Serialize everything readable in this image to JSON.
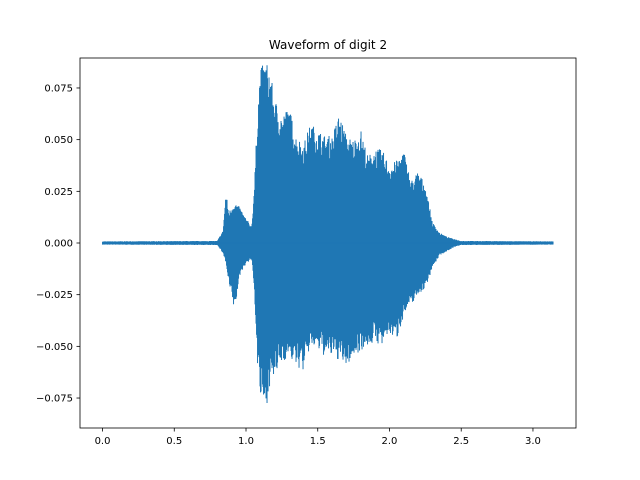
{
  "chart_data": {
    "type": "line",
    "title": "Waveform of digit 2",
    "xlabel": "",
    "ylabel": "",
    "xlim": [
      -0.157,
      3.3
    ],
    "ylim": [
      -0.0895,
      0.0895
    ],
    "x_ticks": [
      0.0,
      0.5,
      1.0,
      1.5,
      2.0,
      2.5,
      3.0
    ],
    "x_tick_labels": [
      "0.0",
      "0.5",
      "1.0",
      "1.5",
      "2.0",
      "2.5",
      "3.0"
    ],
    "y_ticks": [
      -0.075,
      -0.05,
      -0.025,
      0.0,
      0.025,
      0.05,
      0.075
    ],
    "y_tick_labels": [
      "−0.075",
      "−0.050",
      "−0.025",
      "0.000",
      "0.025",
      "0.050",
      "0.075"
    ],
    "grid": false,
    "series": [
      {
        "color": "#1f77b4",
        "sample_rate_hz": 8000,
        "duration_s": 3.14,
        "envelope": {
          "t": [
            0.0,
            0.8,
            0.84,
            0.86,
            0.88,
            0.92,
            0.96,
            1.0,
            1.04,
            1.06,
            1.08,
            1.1,
            1.14,
            1.16,
            1.2,
            1.25,
            1.3,
            1.35,
            1.4,
            1.45,
            1.5,
            1.55,
            1.6,
            1.65,
            1.7,
            1.75,
            1.8,
            1.85,
            1.9,
            1.95,
            2.0,
            2.05,
            2.1,
            2.15,
            2.2,
            2.25,
            2.3,
            2.35,
            2.4,
            2.45,
            2.5,
            3.14
          ],
          "max": [
            0.0008,
            0.001,
            0.006,
            0.025,
            0.015,
            0.02,
            0.017,
            0.012,
            0.008,
            0.03,
            0.065,
            0.085,
            0.088,
            0.086,
            0.07,
            0.062,
            0.066,
            0.052,
            0.048,
            0.058,
            0.055,
            0.052,
            0.052,
            0.063,
            0.052,
            0.05,
            0.055,
            0.042,
            0.046,
            0.045,
            0.038,
            0.04,
            0.045,
            0.03,
            0.035,
            0.028,
            0.01,
            0.005,
            0.003,
            0.002,
            0.001,
            0.0008
          ],
          "min": [
            -0.0008,
            -0.001,
            -0.005,
            -0.01,
            -0.02,
            -0.033,
            -0.015,
            -0.01,
            -0.008,
            -0.025,
            -0.06,
            -0.075,
            -0.081,
            -0.07,
            -0.065,
            -0.058,
            -0.055,
            -0.06,
            -0.062,
            -0.05,
            -0.052,
            -0.055,
            -0.055,
            -0.057,
            -0.06,
            -0.055,
            -0.052,
            -0.05,
            -0.048,
            -0.05,
            -0.044,
            -0.047,
            -0.035,
            -0.03,
            -0.025,
            -0.022,
            -0.012,
            -0.006,
            -0.004,
            -0.002,
            -0.001,
            -0.0008
          ]
        }
      }
    ]
  }
}
